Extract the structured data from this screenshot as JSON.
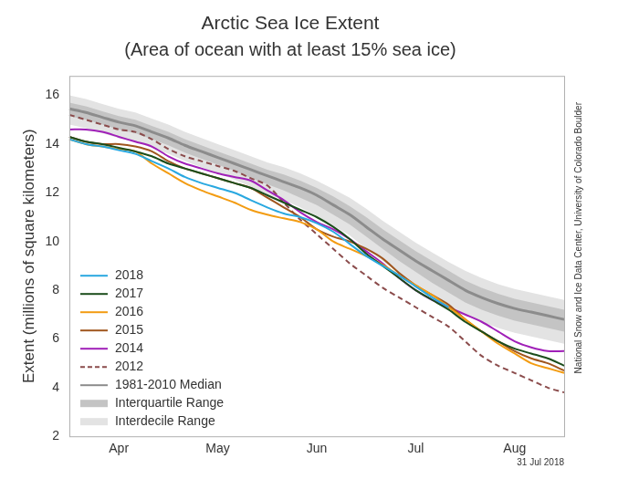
{
  "chart_data": {
    "type": "line",
    "title": "Arctic Sea Ice Extent",
    "subtitle": "(Area of ocean with at least 15% sea ice)",
    "y_label": "Extent (millions of square kilometers)",
    "note": "31 Jul 2018",
    "source": "National Snow and Ice Data Center, University of Colorado Boulder",
    "categories": [
      null,
      null,
      null,
      "Apr",
      null,
      null,
      null,
      null,
      null,
      "May",
      null,
      null,
      null,
      null,
      null,
      "Jun",
      null,
      null,
      null,
      null,
      null,
      "Jul",
      null,
      null,
      null,
      null,
      null,
      "Aug",
      null,
      null,
      null
    ],
    "ylim": [
      2,
      16.8
    ],
    "yticks": [
      2,
      4,
      6,
      8,
      10,
      12,
      14,
      16
    ],
    "grid": false,
    "legend": "lower left",
    "series": [
      {
        "name": "2018",
        "type": "line",
        "color": "#29a8e0",
        "line_style": "solid",
        "values": [
          14.2,
          14.0,
          13.9,
          13.75,
          13.6,
          13.3,
          13.0,
          12.65,
          12.4,
          12.2,
          12.0,
          11.7,
          11.4,
          11.15,
          11.0,
          10.75,
          10.4,
          9.9,
          9.4,
          9.0,
          8.6,
          8.15,
          7.7,
          7.3,
          null,
          null,
          null,
          null,
          null,
          null,
          null
        ]
      },
      {
        "name": "2017",
        "type": "line",
        "color": "#1b4d1b",
        "line_style": "solid",
        "values": [
          14.3,
          14.1,
          14.0,
          13.85,
          13.7,
          13.5,
          13.2,
          13.0,
          12.8,
          12.6,
          12.4,
          12.2,
          11.9,
          11.6,
          11.3,
          11.0,
          10.6,
          10.1,
          9.5,
          9.0,
          8.5,
          8.0,
          7.6,
          7.2,
          6.7,
          6.3,
          5.9,
          5.6,
          5.4,
          5.2,
          4.9
        ]
      },
      {
        "name": "2016",
        "type": "line",
        "color": "#f39c12",
        "line_style": "solid",
        "values": [
          14.2,
          14.0,
          13.9,
          13.8,
          13.7,
          13.2,
          12.8,
          12.4,
          12.1,
          11.85,
          11.6,
          11.3,
          11.1,
          10.95,
          10.8,
          10.5,
          10.0,
          9.7,
          9.4,
          9.05,
          8.6,
          8.2,
          7.8,
          7.3,
          6.8,
          6.3,
          5.8,
          5.4,
          5.0,
          4.8,
          4.6
        ]
      },
      {
        "name": "2015",
        "type": "line",
        "color": "#a0561e",
        "line_style": "solid",
        "values": [
          14.3,
          14.1,
          14.0,
          14.0,
          13.9,
          13.7,
          13.3,
          13.0,
          12.8,
          12.6,
          12.4,
          12.2,
          11.8,
          11.4,
          11.0,
          10.5,
          10.2,
          10.0,
          9.7,
          9.3,
          8.7,
          8.2,
          7.8,
          7.4,
          6.8,
          6.3,
          5.9,
          5.5,
          5.2,
          5.0,
          4.7
        ]
      },
      {
        "name": "2014",
        "type": "line",
        "color": "#a020b8",
        "line_style": "solid",
        "values": [
          14.6,
          14.6,
          14.5,
          14.3,
          14.1,
          13.9,
          13.5,
          13.2,
          13.0,
          12.8,
          12.65,
          12.5,
          12.1,
          11.7,
          11.2,
          10.8,
          10.5,
          10.1,
          9.6,
          9.1,
          8.5,
          8.0,
          7.6,
          7.3,
          7.0,
          6.7,
          6.3,
          5.9,
          5.65,
          5.5,
          5.5
        ]
      },
      {
        "name": "2012",
        "type": "line",
        "color": "#8b4c4c",
        "line_style": "dashed",
        "values": [
          15.2,
          15.0,
          14.8,
          14.6,
          14.5,
          14.2,
          13.8,
          13.5,
          13.3,
          13.1,
          12.9,
          12.6,
          12.3,
          11.6,
          10.9,
          10.3,
          9.7,
          9.1,
          8.6,
          8.1,
          7.7,
          7.3,
          6.9,
          6.5,
          5.9,
          5.3,
          4.9,
          4.6,
          4.3,
          4.0,
          3.8
        ]
      },
      {
        "name": "1981-2010 Median",
        "type": "line",
        "color": "#8c8c8c",
        "line_style": "solid",
        "values": [
          15.45,
          15.3,
          15.1,
          14.9,
          14.75,
          14.5,
          14.25,
          13.95,
          13.7,
          13.45,
          13.2,
          12.95,
          12.7,
          12.45,
          12.2,
          11.9,
          11.5,
          11.1,
          10.6,
          10.1,
          9.65,
          9.2,
          8.8,
          8.4,
          8.0,
          7.7,
          7.45,
          7.25,
          7.1,
          6.95,
          6.8
        ]
      },
      {
        "name": "Interquartile Range",
        "type": "area",
        "color": "#c4c4c4",
        "low": [
          15.15,
          15.0,
          14.8,
          14.6,
          14.45,
          14.2,
          13.95,
          13.65,
          13.4,
          13.15,
          12.9,
          12.6,
          12.35,
          12.1,
          11.8,
          11.5,
          11.1,
          10.7,
          10.2,
          9.7,
          9.2,
          8.75,
          8.3,
          7.9,
          7.5,
          7.2,
          6.95,
          6.75,
          6.6,
          6.45,
          6.3
        ],
        "high": [
          15.7,
          15.55,
          15.35,
          15.15,
          15.0,
          14.75,
          14.5,
          14.2,
          13.95,
          13.7,
          13.45,
          13.2,
          12.95,
          12.75,
          12.5,
          12.2,
          11.85,
          11.45,
          11.0,
          10.5,
          10.05,
          9.6,
          9.2,
          8.8,
          8.4,
          8.1,
          7.85,
          7.65,
          7.5,
          7.35,
          7.2
        ]
      },
      {
        "name": "Interdecile Range",
        "type": "area",
        "color": "#e3e3e3",
        "low": [
          14.8,
          14.65,
          14.45,
          14.25,
          14.1,
          13.85,
          13.6,
          13.3,
          13.05,
          12.8,
          12.55,
          12.25,
          11.95,
          11.7,
          11.4,
          11.05,
          10.65,
          10.25,
          9.7,
          9.2,
          8.7,
          8.25,
          7.8,
          7.4,
          7.0,
          6.7,
          6.45,
          6.25,
          6.1,
          5.95,
          5.8
        ],
        "high": [
          16.0,
          15.85,
          15.65,
          15.45,
          15.3,
          15.05,
          14.8,
          14.5,
          14.25,
          14.0,
          13.75,
          13.5,
          13.25,
          13.05,
          12.8,
          12.5,
          12.15,
          11.8,
          11.35,
          10.85,
          10.4,
          9.95,
          9.55,
          9.15,
          8.8,
          8.5,
          8.25,
          8.05,
          7.9,
          7.75,
          7.6
        ]
      }
    ]
  }
}
